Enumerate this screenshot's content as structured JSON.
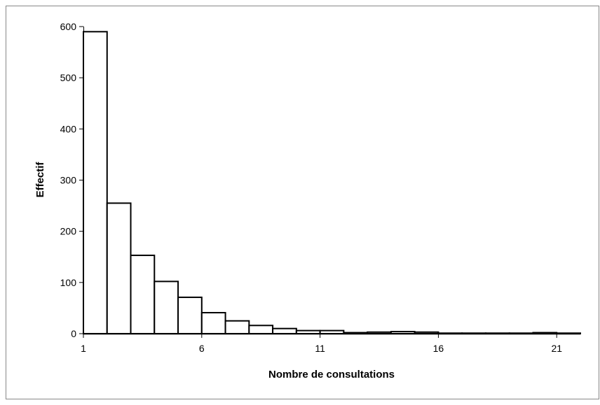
{
  "chart_data": {
    "type": "bar",
    "xlabel": "Nombre de consultations",
    "ylabel": "Effectif",
    "categories": [
      1,
      2,
      3,
      4,
      5,
      6,
      7,
      8,
      9,
      10,
      11,
      12,
      13,
      14,
      15,
      16,
      17,
      18,
      19,
      20,
      21
    ],
    "values": [
      590,
      255,
      153,
      102,
      71,
      41,
      25,
      16,
      10,
      6,
      6,
      2,
      3,
      4,
      3,
      1,
      1,
      1,
      1,
      2,
      1
    ],
    "ylim": [
      0,
      600
    ],
    "yticks": [
      0,
      100,
      200,
      300,
      400,
      500,
      600
    ],
    "xticks": [
      1,
      6,
      11,
      16,
      21
    ],
    "xrange": [
      1,
      22
    ],
    "grid": false,
    "bar_fill": "#ffffff",
    "bar_stroke": "#000000"
  }
}
